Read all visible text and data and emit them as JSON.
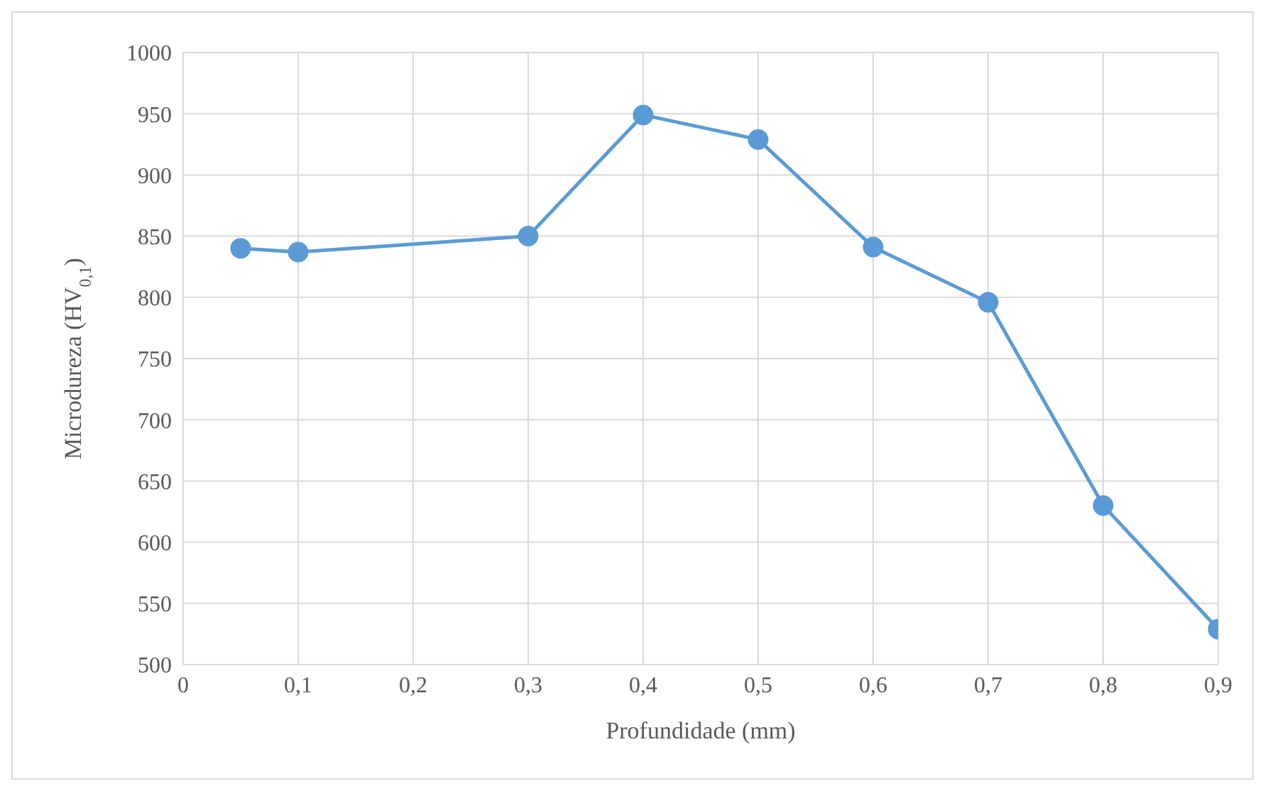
{
  "chart_data": {
    "type": "line",
    "xlabel": "Profundidade (mm)",
    "ylabel": "Microdureza (HV$_{0,1}$)",
    "x": [
      0.05,
      0.1,
      0.3,
      0.4,
      0.5,
      0.6,
      0.7,
      0.8,
      0.9
    ],
    "series": [
      {
        "color": "#5b9bd5",
        "values": [
          840,
          837,
          850,
          949,
          929,
          841,
          796,
          630,
          529
        ]
      }
    ],
    "xlim": [
      0,
      0.9
    ],
    "xticks": [
      0,
      {
        "value": 0.1,
        "label": "0,1"
      },
      {
        "value": 0.2,
        "label": "0,2"
      },
      {
        "value": 0.3,
        "label": "0,3"
      },
      {
        "value": 0.4,
        "label": "0,4"
      },
      {
        "value": 0.5,
        "label": "0,5"
      },
      {
        "value": 0.6,
        "label": "0,6"
      },
      {
        "value": 0.7,
        "label": "0,7"
      },
      {
        "value": 0.8,
        "label": "0,8"
      },
      {
        "value": 0.9,
        "label": "0,9"
      }
    ],
    "ylim": [
      500,
      1000
    ],
    "yticks": [
      500,
      550,
      600,
      650,
      700,
      750,
      800,
      850,
      900,
      950,
      1000
    ],
    "grid": true,
    "marker": "circle",
    "line_style": "solid"
  }
}
